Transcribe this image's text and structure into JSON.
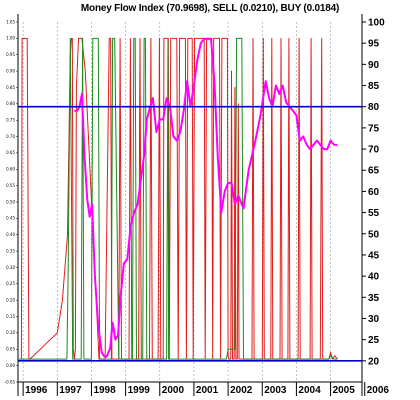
{
  "chart_data": {
    "type": "line",
    "title": "Money Flow Index (70.9698), SELL (0.0210), BUY (0.0184)",
    "x_range": [
      1995.85,
      2005.92
    ],
    "left_axis": {
      "ylim": [
        -0.05,
        1.05
      ],
      "ticks": [
        "-0.05",
        "0.00",
        "0.05",
        "0.10",
        "0.15",
        "0.20",
        "0.25",
        "0.30",
        "0.35",
        "0.40",
        "0.45",
        "0.50",
        "0.55",
        "0.60",
        "0.65",
        "0.70",
        "0.75",
        "0.80",
        "0.85",
        "0.90",
        "0.95",
        "1.00",
        "1.05"
      ]
    },
    "right_axis": {
      "ylim": [
        15,
        100
      ],
      "ticks": [
        "20",
        "25",
        "30",
        "35",
        "40",
        "45",
        "50",
        "55",
        "60",
        "65",
        "70",
        "75",
        "80",
        "85",
        "90",
        "95",
        "100"
      ]
    },
    "x_ticks": [
      "1996",
      "1997",
      "1998",
      "1999",
      "2000",
      "2001",
      "2002",
      "2003",
      "2004",
      "2005",
      "2006"
    ],
    "x_tick_values": [
      1996,
      1997,
      1998,
      1999,
      2000,
      2001,
      2002,
      2003,
      2004,
      2005,
      2006
    ],
    "reference_lines": [
      {
        "axis": "right",
        "value": 80,
        "color": "#0000cc"
      },
      {
        "axis": "right",
        "value": 20,
        "color": "#0000cc"
      }
    ],
    "grid": "vertical-dashed",
    "series": [
      {
        "color": "#e21c1c",
        "axis": "left",
        "x": [
          1995.95,
          1995.97,
          1996.05,
          1996.12,
          1996.17,
          1996.2,
          1996.5,
          1997.0,
          1997.15,
          1997.3,
          1997.38,
          1997.41,
          1997.44,
          1997.47,
          1997.5,
          1997.53,
          1997.56,
          1997.62,
          1997.72,
          1997.82,
          1998.22,
          1998.4,
          1998.52,
          1998.56,
          1998.6,
          1998.8,
          1998.84,
          1998.88,
          1999.1,
          1999.14,
          1999.18,
          1999.38,
          1999.42,
          1999.46,
          1999.7,
          1999.74,
          1999.78,
          1999.95,
          1999.99,
          2000.03,
          2000.1,
          2000.12,
          2000.25,
          2000.28,
          2000.32,
          2000.5,
          2000.54,
          2000.58,
          2000.75,
          2000.78,
          2000.82,
          2000.95,
          2000.98,
          2001.02,
          2001.3,
          2001.33,
          2001.37,
          2001.52,
          2001.55,
          2001.58,
          2001.75,
          2001.78,
          2001.82,
          2001.98,
          2002.0,
          2002.03,
          2002.08,
          2002.1,
          2002.13,
          2002.18,
          2002.2,
          2002.23,
          2002.27,
          2002.3,
          2002.32,
          2002.35,
          2002.7,
          2002.73,
          2002.76,
          2003.0,
          2003.03,
          2003.06,
          2003.25,
          2003.28,
          2003.31,
          2003.52,
          2003.55,
          2003.58,
          2003.75,
          2003.78,
          2003.81,
          2004.05,
          2004.08,
          2004.11,
          2004.4,
          2004.43,
          2004.46,
          2004.7,
          2004.74,
          2004.77,
          2004.8,
          2004.85,
          2004.95,
          2005.0,
          2005.05,
          2005.12,
          2005.2
        ],
        "y": [
          0.02,
          1.0,
          1.0,
          1.0,
          0.02,
          0.02,
          0.05,
          0.1,
          0.2,
          0.4,
          0.95,
          1.0,
          1.0,
          0.05,
          0.02,
          0.05,
          0.85,
          1.0,
          1.0,
          0.9,
          0.02,
          0.02,
          1.0,
          1.0,
          0.02,
          0.02,
          1.0,
          0.02,
          0.02,
          1.0,
          0.02,
          0.02,
          1.0,
          0.02,
          0.02,
          1.0,
          0.02,
          0.02,
          1.0,
          0.02,
          0.02,
          1.0,
          1.0,
          0.02,
          1.0,
          1.0,
          0.02,
          1.0,
          1.0,
          0.02,
          1.0,
          1.0,
          0.02,
          1.0,
          1.0,
          0.02,
          1.0,
          1.0,
          0.02,
          1.0,
          1.0,
          0.02,
          1.0,
          1.0,
          0.03,
          0.02,
          0.02,
          0.9,
          0.02,
          0.02,
          0.85,
          0.02,
          0.02,
          0.8,
          0.02,
          0.02,
          0.02,
          1.0,
          0.02,
          0.02,
          1.0,
          0.02,
          0.02,
          1.0,
          0.02,
          0.02,
          1.0,
          0.02,
          0.02,
          1.0,
          0.02,
          0.02,
          1.0,
          0.02,
          0.02,
          1.0,
          0.02,
          0.02,
          1.0,
          0.02,
          0.02,
          0.02,
          0.02,
          0.04,
          0.02,
          0.03,
          0.02
        ]
      },
      {
        "color": "#1b8a1b",
        "axis": "left",
        "x": [
          1995.85,
          1996.0,
          1996.3,
          1996.5,
          1996.8,
          1997.0,
          1997.2,
          1997.28,
          1997.32,
          1997.38,
          1997.45,
          1997.7,
          1997.74,
          1997.78,
          1998.0,
          1998.04,
          1998.08,
          1998.2,
          1998.24,
          1998.3,
          1998.5,
          1998.58,
          1998.62,
          1998.68,
          1998.8,
          1999.2,
          1999.24,
          1999.28,
          1999.32,
          1999.5,
          1999.54,
          1999.58,
          1999.62,
          1999.9,
          2000.0,
          2000.2,
          2000.24,
          2000.26,
          2000.4,
          2000.7,
          2001.0,
          2001.2,
          2001.7,
          2001.95,
          2002.0,
          2002.2,
          2002.25,
          2002.3,
          2002.4,
          2002.45,
          2002.5,
          2002.8,
          2003.0,
          2003.5,
          2004.0,
          2004.5,
          2004.8,
          2004.95,
          2005.0,
          2005.1,
          2005.2
        ],
        "y": [
          0.02,
          0.02,
          0.02,
          0.02,
          0.02,
          0.02,
          0.02,
          0.02,
          0.3,
          1.0,
          0.02,
          0.02,
          1.0,
          0.02,
          0.02,
          1.0,
          1.0,
          1.0,
          0.02,
          0.02,
          0.02,
          0.02,
          1.0,
          1.0,
          0.02,
          0.02,
          1.0,
          1.0,
          0.02,
          0.02,
          1.0,
          1.0,
          0.02,
          0.02,
          0.02,
          0.02,
          1.0,
          0.02,
          0.02,
          0.02,
          0.02,
          0.02,
          0.02,
          0.02,
          0.05,
          0.05,
          1.0,
          1.0,
          1.0,
          0.02,
          0.02,
          0.02,
          0.02,
          0.02,
          0.02,
          0.02,
          0.02,
          0.02,
          0.03,
          0.02,
          0.02
        ]
      },
      {
        "color": "#ff00ff",
        "axis": "right",
        "x": [
          1997.5,
          1997.58,
          1997.65,
          1997.72,
          1997.8,
          1997.88,
          1997.95,
          1998.02,
          1998.1,
          1998.2,
          1998.3,
          1998.38,
          1998.45,
          1998.55,
          1998.62,
          1998.7,
          1998.78,
          1998.85,
          1998.95,
          1999.05,
          1999.15,
          1999.25,
          1999.35,
          1999.45,
          1999.55,
          1999.62,
          1999.72,
          1999.8,
          1999.9,
          2000.0,
          2000.1,
          2000.2,
          2000.3,
          2000.4,
          2000.5,
          2000.6,
          2000.7,
          2000.8,
          2000.9,
          2001.0,
          2001.1,
          2001.2,
          2001.3,
          2001.4,
          2001.5,
          2001.6,
          2001.7,
          2001.8,
          2001.9,
          2002.0,
          2002.1,
          2002.2,
          2002.3,
          2002.45,
          2002.6,
          2002.8,
          2002.95,
          2003.1,
          2003.2,
          2003.3,
          2003.4,
          2003.5,
          2003.6,
          2003.7,
          2003.8,
          2003.9,
          2004.0,
          2004.1,
          2004.2,
          2004.3,
          2004.4,
          2004.5,
          2004.6,
          2004.7,
          2004.8,
          2004.9,
          2005.0,
          2005.1,
          2005.2
        ],
        "y": [
          79,
          79,
          80,
          83,
          68,
          58,
          54,
          57,
          40,
          28,
          22,
          21,
          21,
          23,
          29,
          25,
          26,
          35,
          43,
          44,
          52,
          55,
          57,
          63,
          69,
          77,
          80,
          82,
          74,
          77,
          77,
          82,
          80,
          73,
          72,
          74,
          79,
          86,
          80,
          85,
          91,
          95,
          96,
          96,
          96,
          86,
          68,
          55,
          60,
          62,
          62,
          57,
          59,
          56,
          65,
          72,
          78,
          86,
          82,
          80,
          85,
          83,
          85,
          81,
          80,
          79,
          78,
          72,
          73,
          71,
          70,
          71,
          72,
          71,
          70,
          70,
          72,
          71,
          70.97
        ]
      }
    ]
  }
}
